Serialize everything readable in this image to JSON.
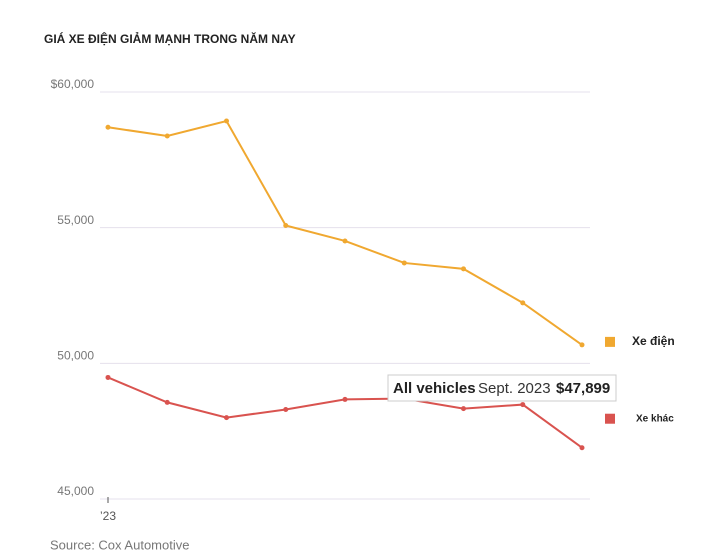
{
  "chart_data": {
    "type": "line",
    "title": "GIÁ XE ĐIỆN GIẢM MẠNH TRONG NĂM NAY",
    "categories": [
      "’23",
      null,
      null,
      null,
      null,
      null,
      null,
      null,
      null
    ],
    "series": [
      {
        "name": "Xe điện",
        "color": "#f0a830",
        "values": [
          58700,
          58380,
          58930,
          55080,
          54510,
          53700,
          53480,
          52230,
          50680
        ]
      },
      {
        "name": "Xe khác",
        "color": "#d9534f",
        "values": [
          49480,
          48560,
          48000,
          48300,
          48670,
          48700,
          48330,
          48480,
          46890
        ]
      }
    ],
    "ylim": [
      45000,
      60000
    ],
    "yticks": [
      {
        "value": 45000,
        "label": "45,000"
      },
      {
        "value": 50000,
        "label": "50,000"
      },
      {
        "value": 55000,
        "label": "55,000"
      },
      {
        "value": 60000,
        "label": "$60,000"
      }
    ],
    "grid": true,
    "annotation": {
      "label": "All vehicles",
      "date": "Sept. 2023",
      "value": "$47,899"
    },
    "source": "Source: Cox Automotive"
  }
}
